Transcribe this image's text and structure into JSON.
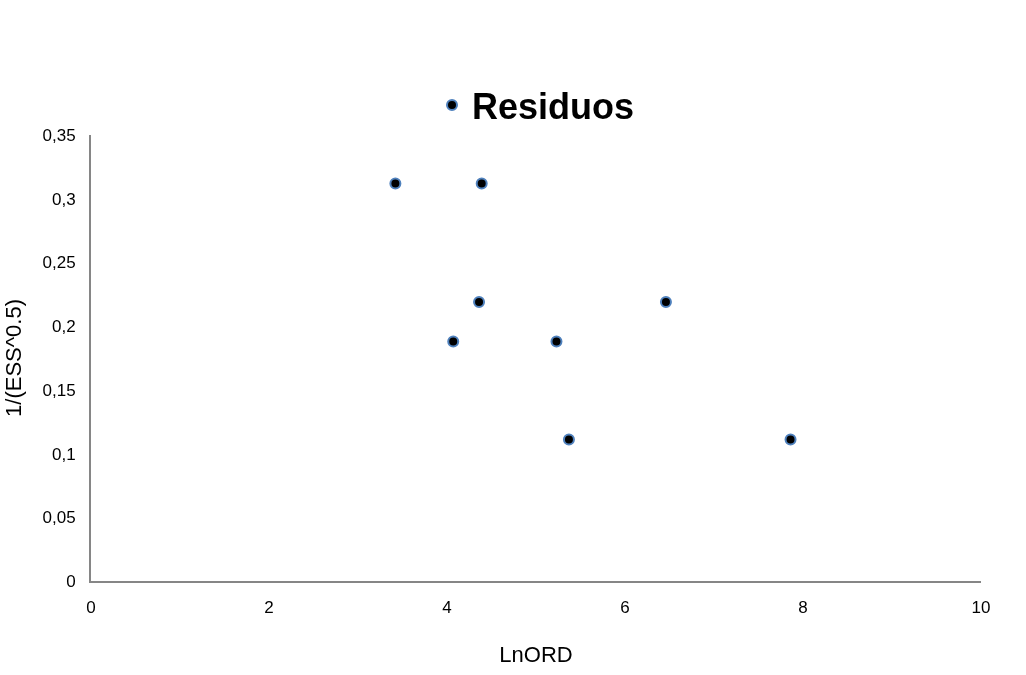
{
  "chart_data": {
    "type": "scatter",
    "xlabel": "LnORD",
    "ylabel": "1/(ESS^0.5)",
    "series": [
      {
        "name": "Residuos",
        "color": "#000000",
        "x": [
          3.42,
          4.39,
          4.36,
          4.07,
          5.23,
          5.37,
          6.46,
          7.86
        ],
        "values": [
          0.312,
          0.312,
          0.219,
          0.188,
          0.188,
          0.111,
          0.219,
          0.111
        ]
      }
    ],
    "xlim": [
      0,
      10
    ],
    "xticks": [
      0,
      2,
      4,
      6,
      8,
      10
    ],
    "ylim": [
      0,
      0.35
    ],
    "yticks": [
      0,
      {
        "value": 0.05,
        "label": "0,05"
      },
      {
        "value": 0.1,
        "label": "0,1"
      },
      {
        "value": 0.15,
        "label": "0,15"
      },
      {
        "value": 0.2,
        "label": "0,2"
      },
      {
        "value": 0.25,
        "label": "0,25"
      },
      {
        "value": 0.3,
        "label": "0,3"
      },
      {
        "value": 0.35,
        "label": "0,35"
      }
    ],
    "marker": "circle",
    "legend": "top"
  }
}
